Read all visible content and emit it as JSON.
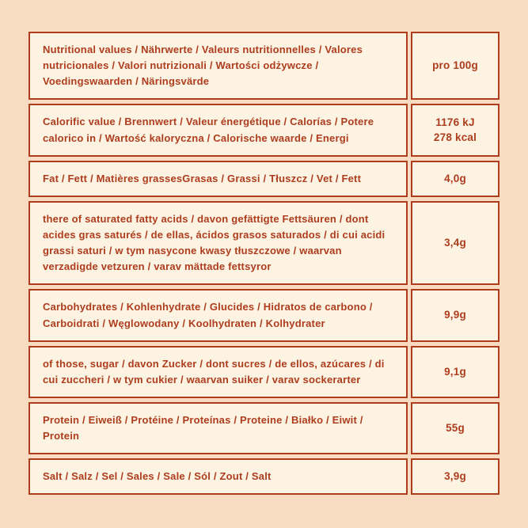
{
  "colors": {
    "page_background": "#f8dbc1",
    "cell_background": "#fcf3e3",
    "accent": "#ae3d1e"
  },
  "table": {
    "unit_header": "pro 100g",
    "rows": [
      {
        "label": "Nutritional values / Nährwerte / Valeurs nutritionnelles / Valores nutricionales / Valori nutrizionali / Wartości odżywcze / Voedingswaarden / Näringsvärde",
        "value": "pro 100g"
      },
      {
        "label": "Calorific value / Brennwert / Valeur énergétique / Calorías / Potere calorico in / Wartość kaloryczna / Calorische waarde / Energi",
        "value": "1176 kJ\n278 kcal"
      },
      {
        "label": "Fat / Fett / Matières grassesGrasas / Grassi /  Tłuszcz / Vet / Fett",
        "value": "4,0g"
      },
      {
        "label": "there of saturated fatty acids / davon gefättigte Fettsäuren / dont acides gras saturés / de ellas, ácidos grasos saturados / di cui acidi grassi saturi / w tym nasycone kwasy tłuszczowe / waarvan verzadigde vetzuren / varav mättade fettsyror",
        "value": "3,4g"
      },
      {
        "label": "Carbohydrates / Kohlenhydrate / Glucides / Hidratos de carbono / Carboidrati / Węglowodany / Koolhydraten / Kolhydrater",
        "value": "9,9g"
      },
      {
        "label": "of those, sugar / davon Zucker / dont sucres / de ellos, azúcares / di cui zuccheri / w tym cukier / waarvan suiker / varav sockerarter",
        "value": "9,1g"
      },
      {
        "label": "Protein / Eiweiß / Protéine / Proteínas / Proteine / Białko / Eiwit / Protein",
        "value": "55g"
      },
      {
        "label": "Salt / Salz / Sel / Sales / Sale / Sól / Zout / Salt",
        "value": "3,9g"
      }
    ]
  }
}
